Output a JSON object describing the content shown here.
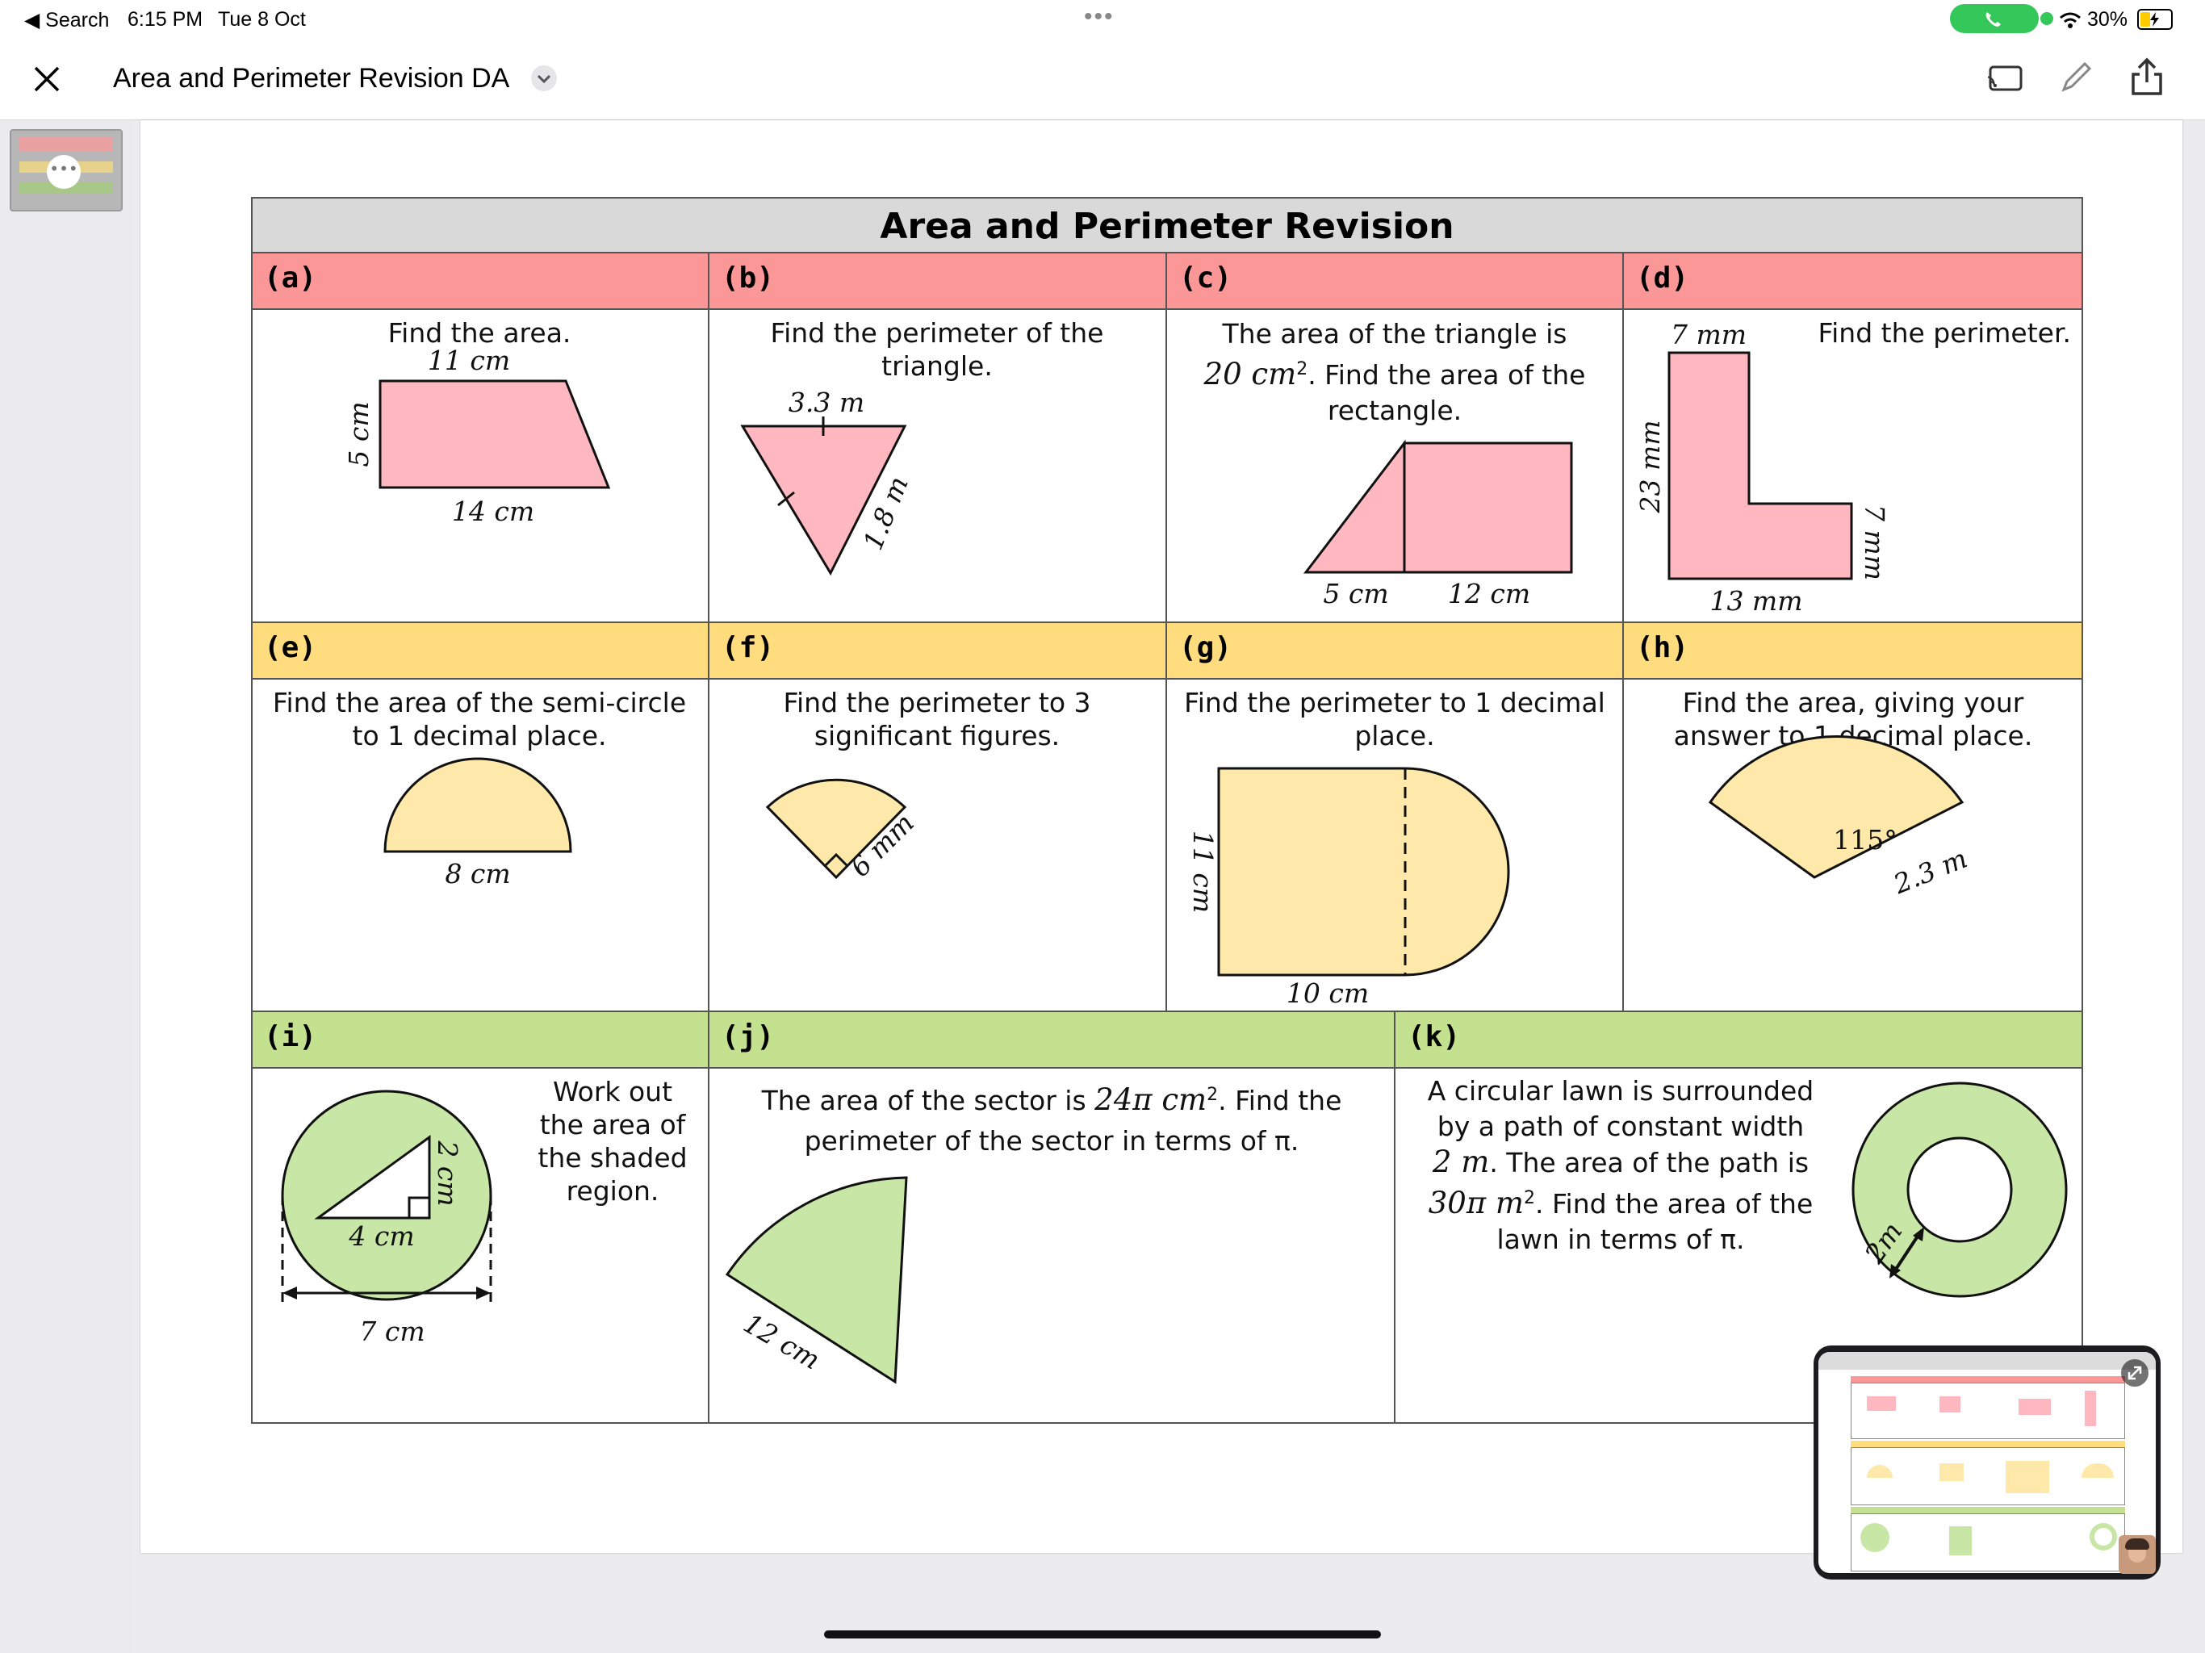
{
  "status_bar": {
    "back_label": "◀ Search",
    "time": "6:15 PM",
    "date": "Tue 8 Oct",
    "battery": "30%"
  },
  "toolbar": {
    "document_title": "Area and Perimeter Revision DA"
  },
  "worksheet": {
    "title": "Area and Perimeter Revision",
    "colors": {
      "red": "#fc9798",
      "yellow": "#ffdc7d",
      "green": "#c4e18f",
      "red_fill": "#ffb8c0",
      "yellow_fill": "#ffe9aa",
      "green_fill": "#c8e6a5",
      "title_bar": "#d9d9d9"
    },
    "a": {
      "label": "(a)",
      "question": "Find the area.",
      "top": "11 cm",
      "side": "5 cm",
      "bottom": "14 cm"
    },
    "b": {
      "label": "(b)",
      "question": "Find the perimeter of the\ntriangle.",
      "top": "3.3 m",
      "side": "1.8 m"
    },
    "c": {
      "label": "(c)",
      "question_pre": "The area of the triangle is",
      "question_value": "20 cm",
      "question_sup": "2",
      "question_post": ". Find the area of the",
      "question_end": "rectangle.",
      "base1": "5 cm",
      "base2": "12 cm"
    },
    "d": {
      "label": "(d)",
      "question": "Find the perimeter.",
      "top": "7 mm",
      "left": "23 mm",
      "right": "7 mm",
      "bottom": "13 mm"
    },
    "e": {
      "label": "(e)",
      "question": "Find the area of the semi-circle\nto 1 decimal place.",
      "diameter": "8 cm"
    },
    "f": {
      "label": "(f)",
      "question": "Find the perimeter to 3\nsignificant figures.",
      "radius": "6 mm"
    },
    "g": {
      "label": "(g)",
      "question": "Find the perimeter to 1 decimal\nplace.",
      "height": "11 cm",
      "width": "10 cm"
    },
    "h": {
      "label": "(h)",
      "question": "Find the area, giving your\nanswer to 1 decimal place.",
      "angle": "115°",
      "radius": "2.3 m"
    },
    "i": {
      "label": "(i)",
      "question": "Work out\nthe area of\nthe shaded\nregion.",
      "base": "4 cm",
      "height": "2 cm",
      "diameter": "7 cm"
    },
    "j": {
      "label": "(j)",
      "question_pre": "The area of the sector is",
      "question_value": "24π cm",
      "question_sup": "2",
      "question_post": ". Find the",
      "question_line2": "perimeter of the sector in terms of π.",
      "radius": "12 cm"
    },
    "k": {
      "label": "(k)",
      "line1": "A circular lawn is surrounded",
      "line2": "by a path of constant width",
      "line3_value": "2 m",
      "line3_text": ". The area of the path is",
      "line4_value": "30π m",
      "line4_sup": "2",
      "line4_text": ". Find the area of the",
      "line5": "lawn in terms of π.",
      "width": "2m"
    }
  }
}
